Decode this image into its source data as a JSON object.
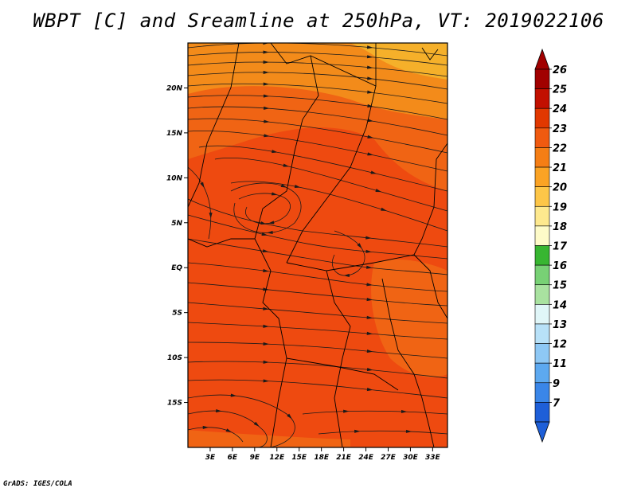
{
  "title": "WBPT [C] and Sreamline at 250hPa, VT: 2019022106",
  "credit": "GrADS: IGES/COLA",
  "map": {
    "lat_labels": [
      "20N",
      "15N",
      "10N",
      "5N",
      "EQ",
      "5S",
      "10S",
      "15S"
    ],
    "lon_labels": [
      "3E",
      "6E",
      "9E",
      "12E",
      "15E",
      "18E",
      "21E",
      "24E",
      "27E",
      "30E",
      "33E"
    ],
    "lat_values": [
      20,
      15,
      10,
      5,
      0,
      -5,
      -10,
      -15
    ],
    "lon_values": [
      3,
      6,
      9,
      12,
      15,
      18,
      21,
      24,
      27,
      30,
      33
    ],
    "lon_range": [
      0,
      35
    ],
    "lat_range": [
      -20,
      25
    ],
    "field_colors": {
      "c20": "#f5b02a",
      "c21": "#f38b1a",
      "c22": "#f06414",
      "c23": "#ee4a10"
    }
  },
  "colorbar": {
    "labels": [
      "26",
      "25",
      "24",
      "23",
      "22",
      "21",
      "20",
      "19",
      "18",
      "17",
      "16",
      "15",
      "14",
      "13",
      "12",
      "11",
      "9",
      "7"
    ],
    "colors": [
      "#a10000",
      "#c21000",
      "#e13800",
      "#f05a10",
      "#f57e15",
      "#fba324",
      "#fdc648",
      "#fee98e",
      "#fefbc8",
      "#38b631",
      "#78d175",
      "#a9e2a0",
      "#e0f6f8",
      "#b8e1f8",
      "#8ec8f5",
      "#5da9f0",
      "#3a86e8",
      "#1e5fd8"
    ],
    "top_color": "#a10000",
    "bottom_color": "#1e5fd8"
  }
}
